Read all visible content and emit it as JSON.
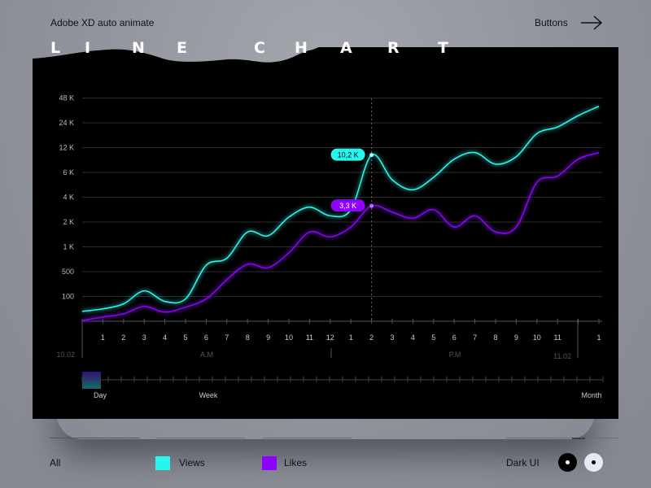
{
  "header": {
    "subtitle": "Adobe XD auto animate",
    "link_label": "Buttons",
    "link_icon": "arrow-right-icon"
  },
  "title_letters": [
    "L",
    "I",
    "N",
    "E",
    "C",
    "H",
    "A",
    "R",
    "T"
  ],
  "colors": {
    "views": "#26f7ee",
    "likes": "#8e00ff",
    "panel": "#000000",
    "background": "#8e919a"
  },
  "chart_data": {
    "type": "line",
    "title": "LINE CHART",
    "y_ticks": [
      {
        "label": "100",
        "value": 100
      },
      {
        "label": "500",
        "value": 500
      },
      {
        "label": "1 K",
        "value": 1000
      },
      {
        "label": "2 K",
        "value": 2000
      },
      {
        "label": "4 K",
        "value": 4000
      },
      {
        "label": "6 K",
        "value": 6000
      },
      {
        "label": "12 K",
        "value": 12000
      },
      {
        "label": "24 K",
        "value": 24000
      },
      {
        "label": "48 K",
        "value": 48000
      }
    ],
    "x_tick_labels": [
      "",
      "1",
      "2",
      "3",
      "4",
      "5",
      "6",
      "7",
      "8",
      "9",
      "10",
      "11",
      "12",
      "1",
      "2",
      "3",
      "4",
      "5",
      "6",
      "7",
      "8",
      "9",
      "10",
      "11",
      "",
      "1"
    ],
    "x_groups": {
      "start_date": "10.02",
      "am": "A.M",
      "pm": "P.M",
      "end_date": "11.02"
    },
    "grid": true,
    "series": [
      {
        "name": "Views",
        "color": "#26f7ee",
        "values": [
          40,
          50,
          70,
          190,
          80,
          90,
          630,
          770,
          1600,
          1450,
          2400,
          3200,
          2500,
          3000,
          10200,
          5400,
          4600,
          5600,
          9200,
          10800,
          8000,
          9800,
          18800,
          22000,
          31000,
          40000
        ]
      },
      {
        "name": "Likes",
        "color": "#8e00ff",
        "values": [
          3,
          17,
          30,
          60,
          37,
          57,
          90,
          370,
          650,
          580,
          880,
          1600,
          1400,
          1800,
          3300,
          2800,
          2300,
          3000,
          1800,
          2500,
          1600,
          1800,
          5200,
          5700,
          9200,
          10800
        ]
      }
    ],
    "highlight": {
      "index": 14,
      "labels": [
        "10,2 K",
        "3,3 K"
      ]
    }
  },
  "range_selector": {
    "labels": [
      "Day",
      "Week",
      "Month"
    ],
    "selected": "Day"
  },
  "legend": {
    "all_label": "All",
    "views_label": "Views",
    "likes_label": "Likes"
  },
  "theme": {
    "label": "Dark UI",
    "selected": "dark"
  }
}
